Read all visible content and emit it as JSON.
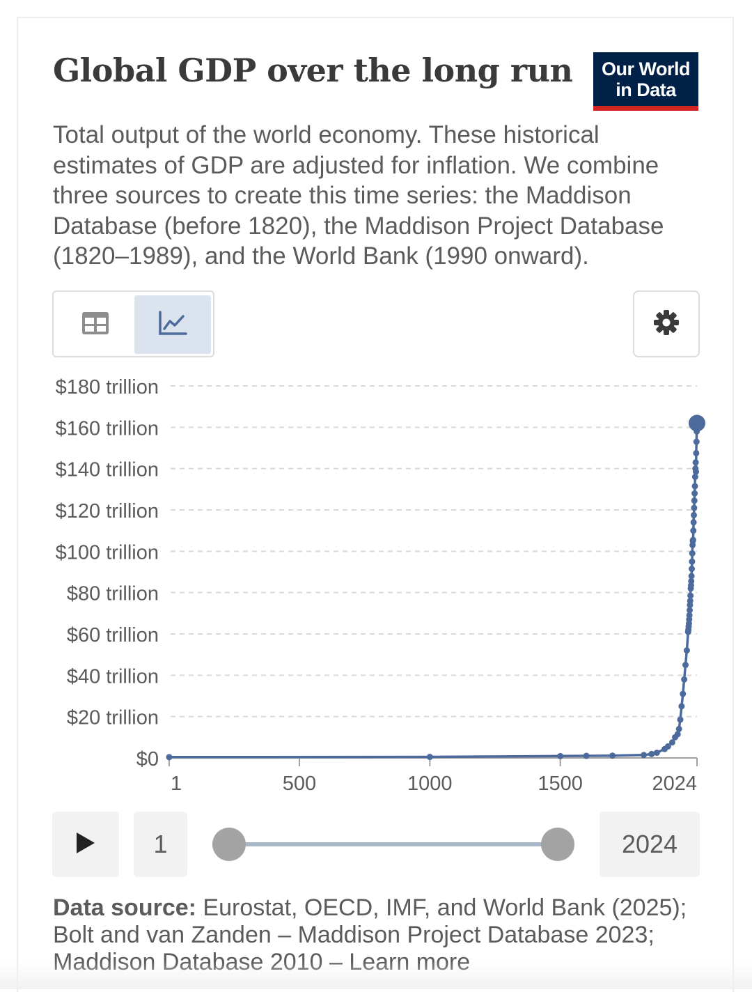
{
  "header": {
    "title": "Global GDP over the long run",
    "logo_line1": "Our World",
    "logo_line2": "in Data",
    "subtitle": "Total output of the world economy. These historical estimates of GDP are adjusted for inflation. We combine three sources to create this time series: the Maddison Database (before 1820), the Maddison Project Database (1820–1989), and the World Bank (1990 onward)."
  },
  "icons": {
    "table_tab": "table-icon",
    "chart_tab": "line-chart-icon",
    "settings": "gear-icon",
    "play": "play-icon"
  },
  "colors": {
    "series": "#4c6a9c",
    "brand_bg": "#002147",
    "brand_accent": "#ce261e",
    "active_tab": "#dbe4ee"
  },
  "timeline": {
    "start_label": "1",
    "end_label": "2024",
    "start_year": 1,
    "end_year": 2024
  },
  "footer": {
    "source_label": "Data source:",
    "source_text": " Eurostat, OECD, IMF, and World Bank (2025); Bolt and van Zanden – Maddison Project Database 2023; Maddison Database 2010 – Learn more"
  },
  "chart_data": {
    "type": "line",
    "title": "Global GDP over the long run",
    "xlabel": "",
    "ylabel": "",
    "xlim": [
      1,
      2024
    ],
    "ylim": [
      0,
      180
    ],
    "y_unit": "trillion international-$",
    "grid": true,
    "xticks": [
      1,
      500,
      1000,
      1500,
      2024
    ],
    "xtick_labels": [
      "1",
      "500",
      "1000",
      "1500",
      "2024"
    ],
    "yticks": [
      0,
      20,
      40,
      60,
      80,
      100,
      120,
      140,
      160,
      180
    ],
    "ytick_labels": [
      "$0",
      "$20 trillion",
      "$40 trillion",
      "$60 trillion",
      "$80 trillion",
      "$100 trillion",
      "$120 trillion",
      "$140 trillion",
      "$160 trillion",
      "$180 trillion"
    ],
    "series": [
      {
        "x": [
          1,
          1000,
          1500,
          1600,
          1700,
          1820,
          1850,
          1870,
          1900,
          1913,
          1929,
          1940,
          1950,
          1955,
          1960,
          1965,
          1970,
          1975,
          1980,
          1985,
          1990,
          1991,
          1992,
          1993,
          1994,
          1995,
          1996,
          1997,
          1998,
          1999,
          2000,
          2001,
          2002,
          2003,
          2004,
          2005,
          2006,
          2007,
          2008,
          2009,
          2010,
          2011,
          2012,
          2013,
          2014,
          2015,
          2016,
          2017,
          2018,
          2019,
          2020,
          2021,
          2022,
          2023,
          2024
        ],
        "y": [
          0.4,
          0.5,
          0.9,
          1.0,
          1.1,
          1.4,
          1.9,
          2.5,
          4.3,
          5.6,
          7.5,
          10.0,
          11.5,
          14.0,
          18.5,
          25.0,
          31.0,
          38.0,
          45.0,
          52.0,
          61.0,
          62.0,
          63.5,
          65.0,
          67.0,
          69.0,
          71.5,
          74.0,
          76.0,
          78.5,
          82.0,
          83.5,
          85.5,
          88.0,
          91.5,
          95.0,
          99.0,
          103.0,
          105.0,
          105.5,
          110.0,
          114.0,
          117.5,
          121.0,
          124.5,
          128.0,
          131.5,
          136.0,
          140.0,
          143.0,
          138.5,
          147.5,
          153.0,
          158.0,
          162.0
        ]
      }
    ],
    "highlight_last_point": true
  }
}
